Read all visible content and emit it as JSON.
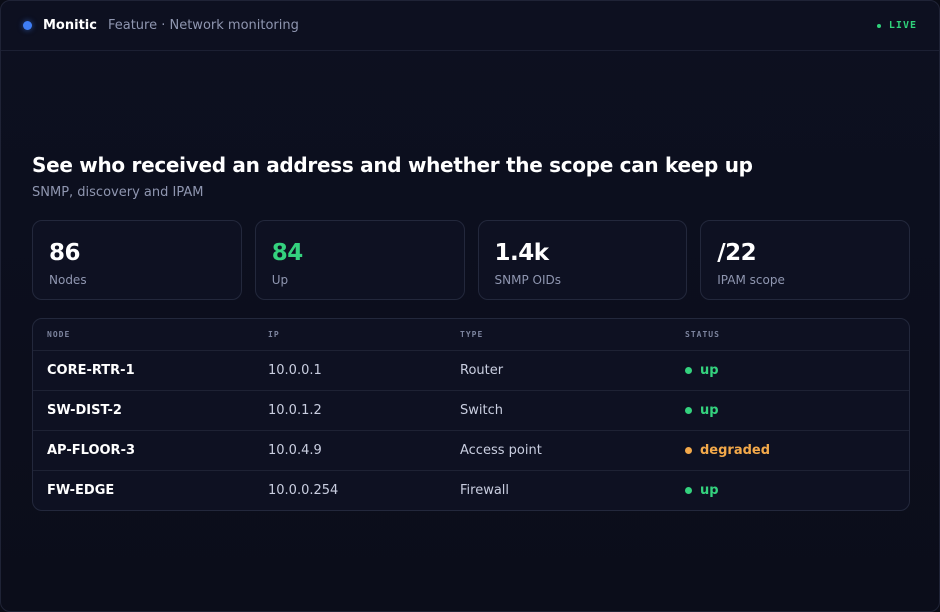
{
  "header": {
    "brand": "Monitic",
    "breadcrumb": "Feature · Network monitoring",
    "live_label": "LIVE",
    "live_color": "#2fd27a",
    "brand_color": "#3f7ef5"
  },
  "hero": {
    "title": "See who received an address and whether the scope can keep up",
    "subtitle": "SNMP, discovery and IPAM"
  },
  "stats": [
    {
      "value": "86",
      "label": "Nodes"
    },
    {
      "value": "84",
      "label": "Up",
      "color": "#34d27e"
    },
    {
      "value": "1.4k",
      "label": "SNMP OIDs"
    },
    {
      "value": "/22",
      "label": "IPAM scope"
    }
  ],
  "table": {
    "columns": [
      "NODE",
      "IP",
      "TYPE",
      "STATUS"
    ],
    "rows": [
      {
        "node": "CORE-RTR-1",
        "ip": "10.0.0.1",
        "type": "Router",
        "status": "up",
        "status_color": "#34d27e"
      },
      {
        "node": "SW-DIST-2",
        "ip": "10.0.1.2",
        "type": "Switch",
        "status": "up",
        "status_color": "#34d27e"
      },
      {
        "node": "AP-FLOOR-3",
        "ip": "10.0.4.9",
        "type": "Access point",
        "status": "degraded",
        "status_color": "#f3a94a"
      },
      {
        "node": "FW-EDGE",
        "ip": "10.0.0.254",
        "type": "Firewall",
        "status": "up",
        "status_color": "#34d27e"
      }
    ]
  }
}
